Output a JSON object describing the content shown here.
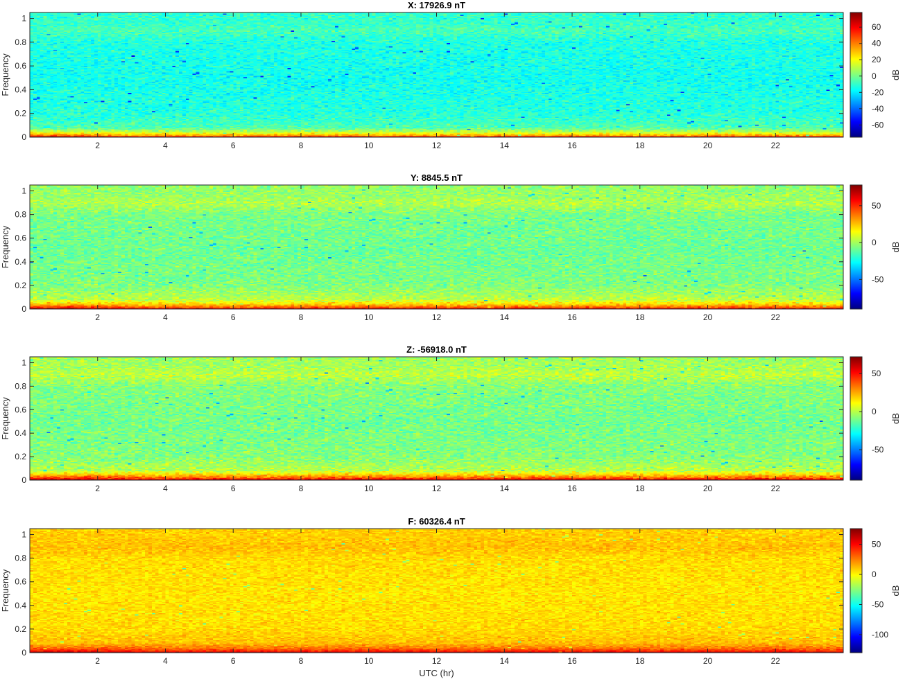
{
  "chart_data": [
    {
      "type": "heatmap",
      "title": "X: 17926.9 nT",
      "xlabel": "",
      "ylabel": "Frequency",
      "xlim": [
        0,
        24
      ],
      "ylim": [
        0,
        1.05
      ],
      "xticks": [
        2,
        4,
        6,
        8,
        10,
        12,
        14,
        16,
        18,
        20,
        22
      ],
      "yticks": [
        0,
        0.2,
        0.4,
        0.6,
        0.8,
        1
      ],
      "colorbar": {
        "label": "dB",
        "clim": [
          -75,
          78
        ],
        "ticks": [
          60,
          40,
          20,
          0,
          -20,
          -40,
          -60
        ]
      },
      "level_profile": {
        "freq": [
          0,
          0.015,
          0.04,
          0.08,
          0.2,
          0.5,
          0.8,
          0.86,
          0.9,
          0.94,
          1.05
        ],
        "db": [
          72,
          32,
          14,
          -6,
          -12,
          -15,
          -13,
          -9,
          -6,
          -9,
          -11
        ]
      },
      "noise_db": 7
    },
    {
      "type": "heatmap",
      "title": "Y: 8845.5 nT",
      "xlabel": "",
      "ylabel": "Frequency",
      "xlim": [
        0,
        24
      ],
      "ylim": [
        0,
        1.05
      ],
      "xticks": [
        2,
        4,
        6,
        8,
        10,
        12,
        14,
        16,
        18,
        20,
        22
      ],
      "yticks": [
        0,
        0.2,
        0.4,
        0.6,
        0.8,
        1
      ],
      "colorbar": {
        "label": "dB",
        "clim": [
          -90,
          78
        ],
        "ticks": [
          50,
          0,
          -50
        ]
      },
      "level_profile": {
        "freq": [
          0,
          0.015,
          0.04,
          0.08,
          0.2,
          0.5,
          0.8,
          0.86,
          0.9,
          0.94,
          1.05
        ],
        "db": [
          72,
          40,
          22,
          4,
          -6,
          -9,
          -7,
          -1,
          3,
          -1,
          -3
        ]
      },
      "noise_db": 8
    },
    {
      "type": "heatmap",
      "title": "Z: -56918.0 nT",
      "xlabel": "",
      "ylabel": "Frequency",
      "xlim": [
        0,
        24
      ],
      "ylim": [
        0,
        1.05
      ],
      "xticks": [
        2,
        4,
        6,
        8,
        10,
        12,
        14,
        16,
        18,
        20,
        22
      ],
      "yticks": [
        0,
        0.2,
        0.4,
        0.6,
        0.8,
        1
      ],
      "colorbar": {
        "label": "dB",
        "clim": [
          -90,
          72
        ],
        "ticks": [
          50,
          0,
          -50
        ]
      },
      "level_profile": {
        "freq": [
          0,
          0.015,
          0.04,
          0.08,
          0.2,
          0.5,
          0.8,
          0.86,
          0.9,
          0.94,
          1.05
        ],
        "db": [
          68,
          42,
          22,
          0,
          -8,
          -11,
          -8,
          -2,
          2,
          -2,
          -4
        ]
      },
      "noise_db": 8
    },
    {
      "type": "heatmap",
      "title": "F: 60326.4 nT",
      "xlabel": "UTC (hr)",
      "ylabel": "Frequency",
      "xlim": [
        0,
        24
      ],
      "ylim": [
        0,
        1.05
      ],
      "xticks": [
        2,
        4,
        6,
        8,
        10,
        12,
        14,
        16,
        18,
        20,
        22
      ],
      "yticks": [
        0,
        0.2,
        0.4,
        0.6,
        0.8,
        1
      ],
      "colorbar": {
        "label": "dB",
        "clim": [
          -130,
          76
        ],
        "ticks": [
          50,
          0,
          -50,
          -100
        ]
      },
      "level_profile": {
        "freq": [
          0,
          0.015,
          0.04,
          0.08,
          0.2,
          0.5,
          0.8,
          0.86,
          0.9,
          0.94,
          1.05
        ],
        "db": [
          72,
          40,
          26,
          12,
          6,
          4,
          6,
          10,
          12,
          10,
          8
        ]
      },
      "noise_db": 7
    }
  ]
}
